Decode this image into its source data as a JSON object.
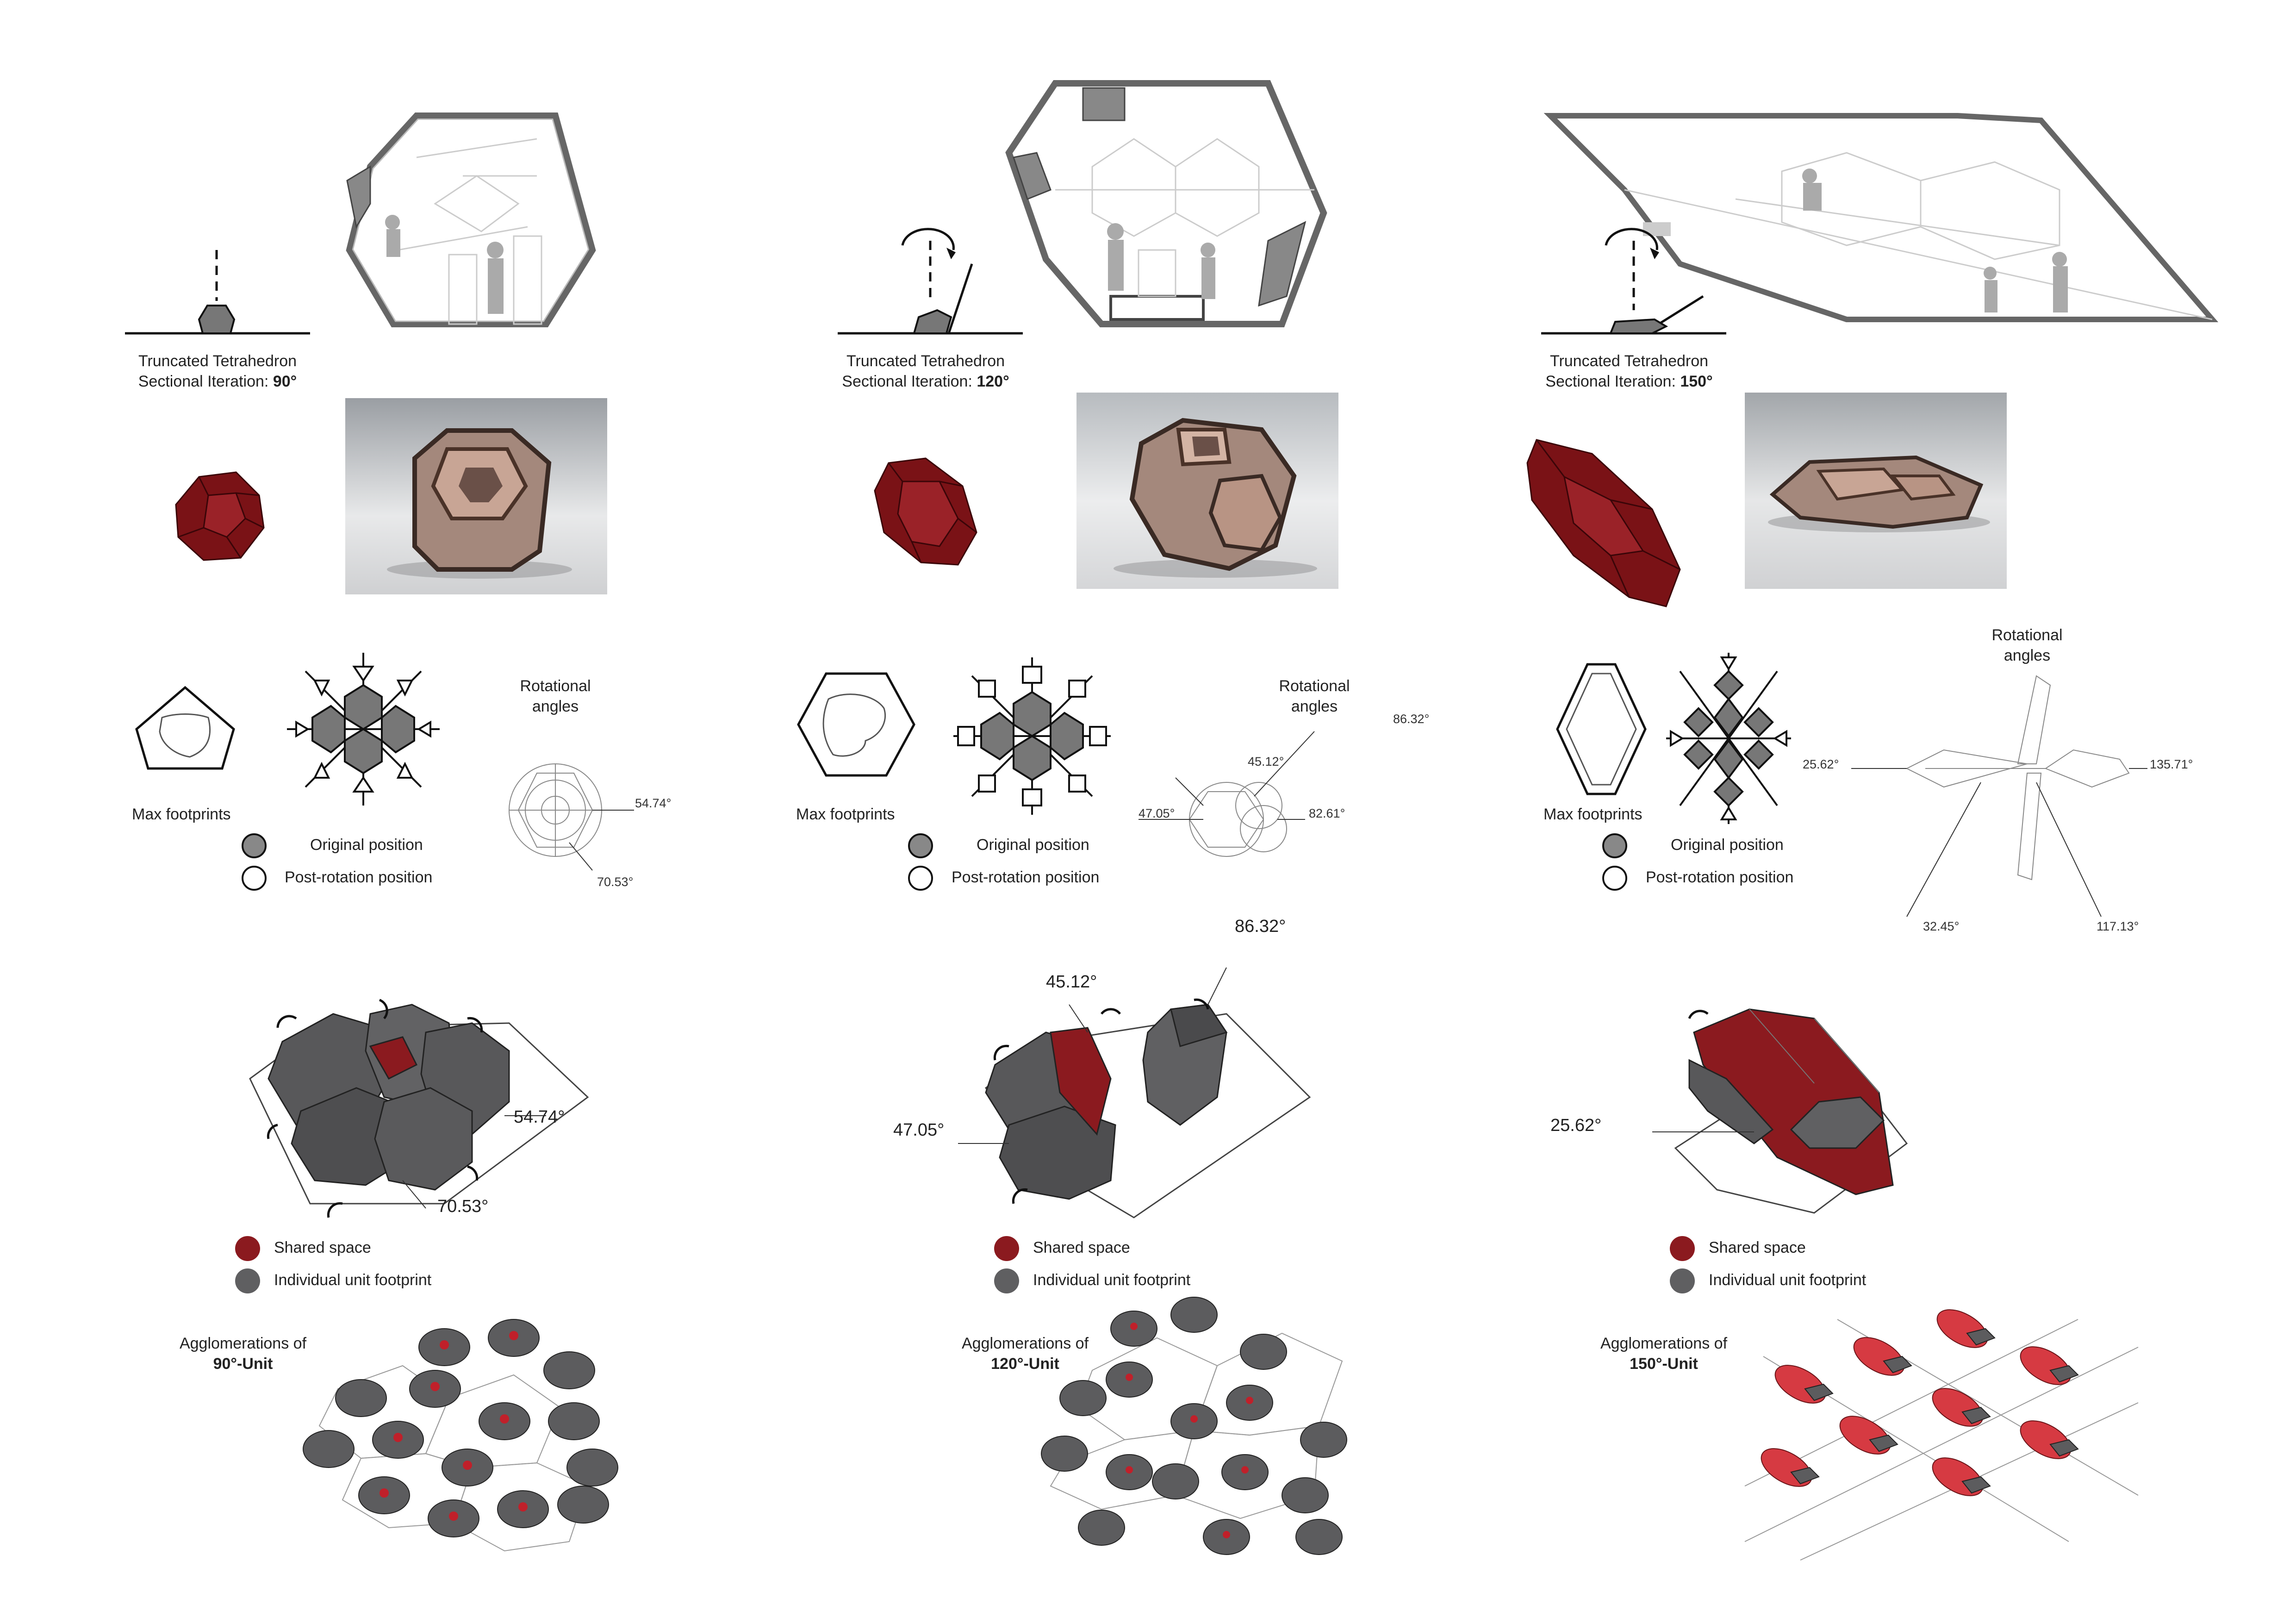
{
  "columns": [
    {
      "caption_line1": "Truncated Tetrahedron",
      "caption_line2_prefix": "Sectional Iteration: ",
      "caption_angle": "90°",
      "max_footprints": "Max footprints",
      "rotational_angles": "Rotational\nangles",
      "small_angles": [
        "54.74°",
        "70.53°"
      ],
      "legend_original": "Original position",
      "legend_post": "Post-rotation position",
      "big_angles": [
        "54.74°",
        "70.53°"
      ],
      "shared_space": "Shared space",
      "individual_footprint": "Individual unit footprint",
      "agglom_line1": "Agglomerations of",
      "agglom_line2": "90°-Unit"
    },
    {
      "caption_line1": "Truncated Tetrahedron",
      "caption_line2_prefix": "Sectional Iteration: ",
      "caption_angle": "120°",
      "max_footprints": "Max footprints",
      "rotational_angles": "Rotational\nangles",
      "small_angles": [
        "86.32°",
        "45.12°",
        "47.05°",
        "82.61°"
      ],
      "legend_original": "Original position",
      "legend_post": "Post-rotation position",
      "big_angles": [
        "86.32°",
        "45.12°",
        "47.05°"
      ],
      "shared_space": "Shared space",
      "individual_footprint": "Individual unit footprint",
      "agglom_line1": "Agglomerations of",
      "agglom_line2": "120°-Unit"
    },
    {
      "caption_line1": "Truncated Tetrahedron",
      "caption_line2_prefix": "Sectional Iteration: ",
      "caption_angle": "150°",
      "max_footprints": "Max footprints",
      "rotational_angles": "Rotational\nangles",
      "small_angles": [
        "25.62°",
        "135.71°",
        "32.45°",
        "117.13°"
      ],
      "legend_original": "Original position",
      "legend_post": "Post-rotation position",
      "big_angles": [
        "25.62°"
      ],
      "shared_space": "Shared space",
      "individual_footprint": "Individual unit footprint",
      "agglom_line1": "Agglomerations of",
      "agglom_line2": "150°-Unit"
    }
  ],
  "colors": {
    "shared_red": "#8b1a1f",
    "unit_grey": "#5f5f61",
    "line": "#222222",
    "photo_bg": "#c9cace"
  }
}
